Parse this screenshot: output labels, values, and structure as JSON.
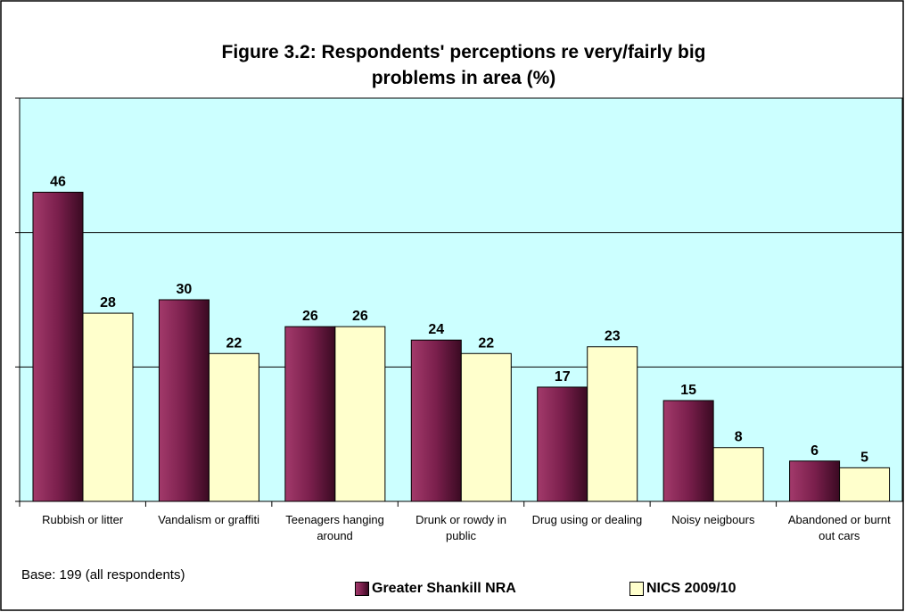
{
  "chart_data": {
    "type": "bar",
    "title": "Figure 3.2: Respondents' perceptions re very/fairly big problems in area (%)",
    "categories": [
      "Rubbish or litter",
      "Vandalism or graffiti",
      "Teenagers hanging around",
      "Drunk or rowdy in public",
      "Drug using or dealing",
      "Noisy neigbours",
      "Abandoned or burnt out cars"
    ],
    "series": [
      {
        "name": "Greater Shankill NRA",
        "color": "#7a1f4c",
        "values": [
          46,
          30,
          26,
          24,
          17,
          15,
          6
        ]
      },
      {
        "name": "NICS 2009/10",
        "color": "#ffffcc",
        "values": [
          28,
          22,
          26,
          22,
          23,
          8,
          5
        ]
      }
    ],
    "ylim": [
      0,
      60
    ],
    "yticks": [
      0,
      20,
      40,
      60
    ],
    "grid": true,
    "note": "Base: 199 (all respondents)"
  }
}
